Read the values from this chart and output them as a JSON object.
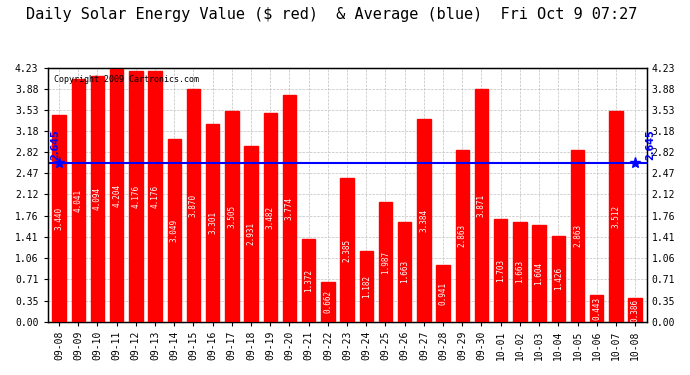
{
  "title": "Daily Solar Energy Value ($ red)  & Average (blue)  Fri Oct 9 07:27",
  "copyright": "Copyright 2009 Cartronics.com",
  "average": 2.645,
  "bar_color": "#FF0000",
  "avg_line_color": "#0000FF",
  "background_color": "#FFFFFF",
  "grid_color": "#C0C0C0",
  "categories": [
    "09-08",
    "09-09",
    "09-10",
    "09-11",
    "09-12",
    "09-13",
    "09-14",
    "09-15",
    "09-16",
    "09-17",
    "09-18",
    "09-19",
    "09-20",
    "09-21",
    "09-22",
    "09-23",
    "09-24",
    "09-25",
    "09-26",
    "09-27",
    "09-28",
    "09-29",
    "09-30",
    "10-01",
    "10-02",
    "10-03",
    "10-04",
    "10-05",
    "10-06",
    "10-07",
    "10-08"
  ],
  "values": [
    3.44,
    4.041,
    4.094,
    4.204,
    4.176,
    4.176,
    3.049,
    3.87,
    3.301,
    3.505,
    2.931,
    3.482,
    3.774,
    1.372,
    0.662,
    2.385,
    1.182,
    1.987,
    1.663,
    3.384,
    0.941,
    2.863,
    3.871,
    1.703,
    1.663,
    1.604,
    1.426,
    2.863,
    0.443,
    3.512,
    0.386
  ],
  "ylim": [
    0.0,
    4.23
  ],
  "yticks": [
    0.0,
    0.35,
    0.71,
    1.06,
    1.41,
    1.76,
    2.12,
    2.47,
    2.82,
    3.18,
    3.53,
    3.88,
    4.23
  ],
  "title_fontsize": 11,
  "tick_fontsize": 7,
  "avg_label": "2.645",
  "bar_width": 0.7
}
